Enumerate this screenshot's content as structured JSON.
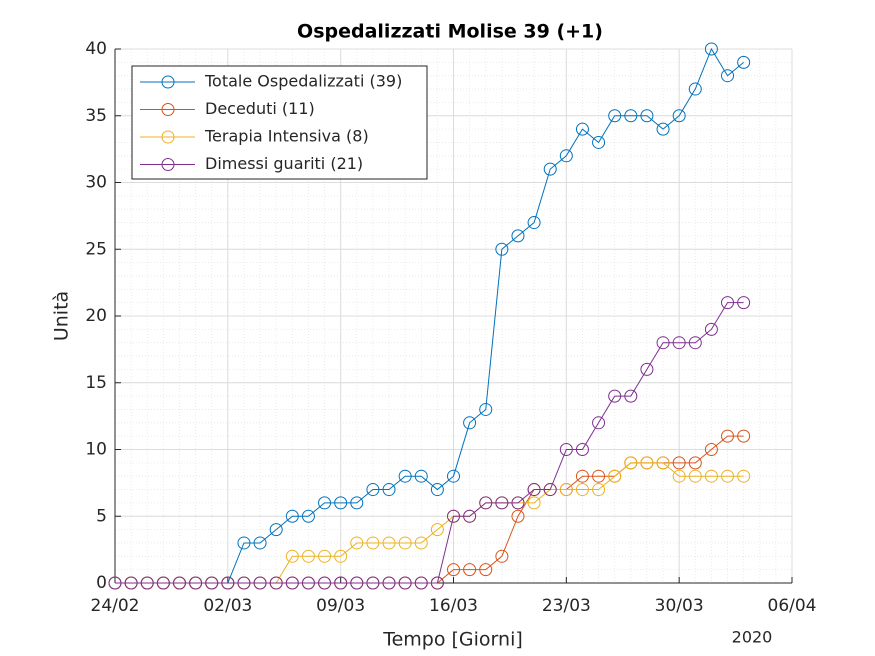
{
  "chart_data": {
    "type": "line",
    "title": "Ospedalizzati Molise 39 (+1)",
    "xlabel": "Tempo [Giorni]",
    "ylabel": "Unità",
    "year": "2020",
    "x": [
      "24/02",
      "25/02",
      "26/02",
      "27/02",
      "28/02",
      "29/02",
      "01/03",
      "02/03",
      "03/03",
      "04/03",
      "05/03",
      "06/03",
      "07/03",
      "08/03",
      "09/03",
      "10/03",
      "11/03",
      "12/03",
      "13/03",
      "14/03",
      "15/03",
      "16/03",
      "17/03",
      "18/03",
      "19/03",
      "20/03",
      "21/03",
      "22/03",
      "23/03",
      "24/03",
      "25/03",
      "26/03",
      "27/03",
      "28/03",
      "29/03",
      "30/03",
      "31/03",
      "01/04",
      "02/04",
      "03/04"
    ],
    "series": [
      {
        "name": "Totale Ospedalizzati (39)",
        "color": "#0072bd",
        "values": [
          0,
          0,
          0,
          0,
          0,
          0,
          0,
          0,
          3,
          3,
          4,
          5,
          5,
          6,
          6,
          6,
          7,
          7,
          8,
          8,
          7,
          8,
          12,
          13,
          25,
          26,
          27,
          31,
          32,
          34,
          33,
          35,
          35,
          35,
          34,
          35,
          37,
          40,
          38,
          39
        ]
      },
      {
        "name": "Deceduti (11)",
        "color": "#d95319",
        "values": [
          0,
          0,
          0,
          0,
          0,
          0,
          0,
          0,
          0,
          0,
          0,
          0,
          0,
          0,
          0,
          0,
          0,
          0,
          0,
          0,
          0,
          1,
          1,
          1,
          2,
          5,
          7,
          7,
          7,
          8,
          8,
          8,
          9,
          9,
          9,
          9,
          9,
          10,
          11,
          11
        ]
      },
      {
        "name": "Terapia Intensiva (8)",
        "color": "#edb120",
        "values": [
          0,
          0,
          0,
          0,
          0,
          0,
          0,
          0,
          0,
          0,
          0,
          2,
          2,
          2,
          2,
          3,
          3,
          3,
          3,
          3,
          4,
          5,
          5,
          6,
          6,
          6,
          6,
          7,
          7,
          7,
          7,
          8,
          9,
          9,
          9,
          8,
          8,
          8,
          8,
          8
        ]
      },
      {
        "name": "Dimessi guariti (21)",
        "color": "#7e2f8e",
        "values": [
          0,
          0,
          0,
          0,
          0,
          0,
          0,
          0,
          0,
          0,
          0,
          0,
          0,
          0,
          0,
          0,
          0,
          0,
          0,
          0,
          0,
          5,
          5,
          6,
          6,
          6,
          7,
          7,
          10,
          10,
          12,
          14,
          14,
          16,
          18,
          18,
          18,
          19,
          21,
          21
        ]
      }
    ],
    "xlim": [
      "24/02",
      "06/04"
    ],
    "xticks": [
      "24/02",
      "02/03",
      "09/03",
      "16/03",
      "23/03",
      "30/03",
      "06/04"
    ],
    "ylim": [
      0,
      40
    ],
    "yticks": [
      0,
      5,
      10,
      15,
      20,
      25,
      30,
      35,
      40
    ],
    "grid": true,
    "legend": "top-left"
  }
}
